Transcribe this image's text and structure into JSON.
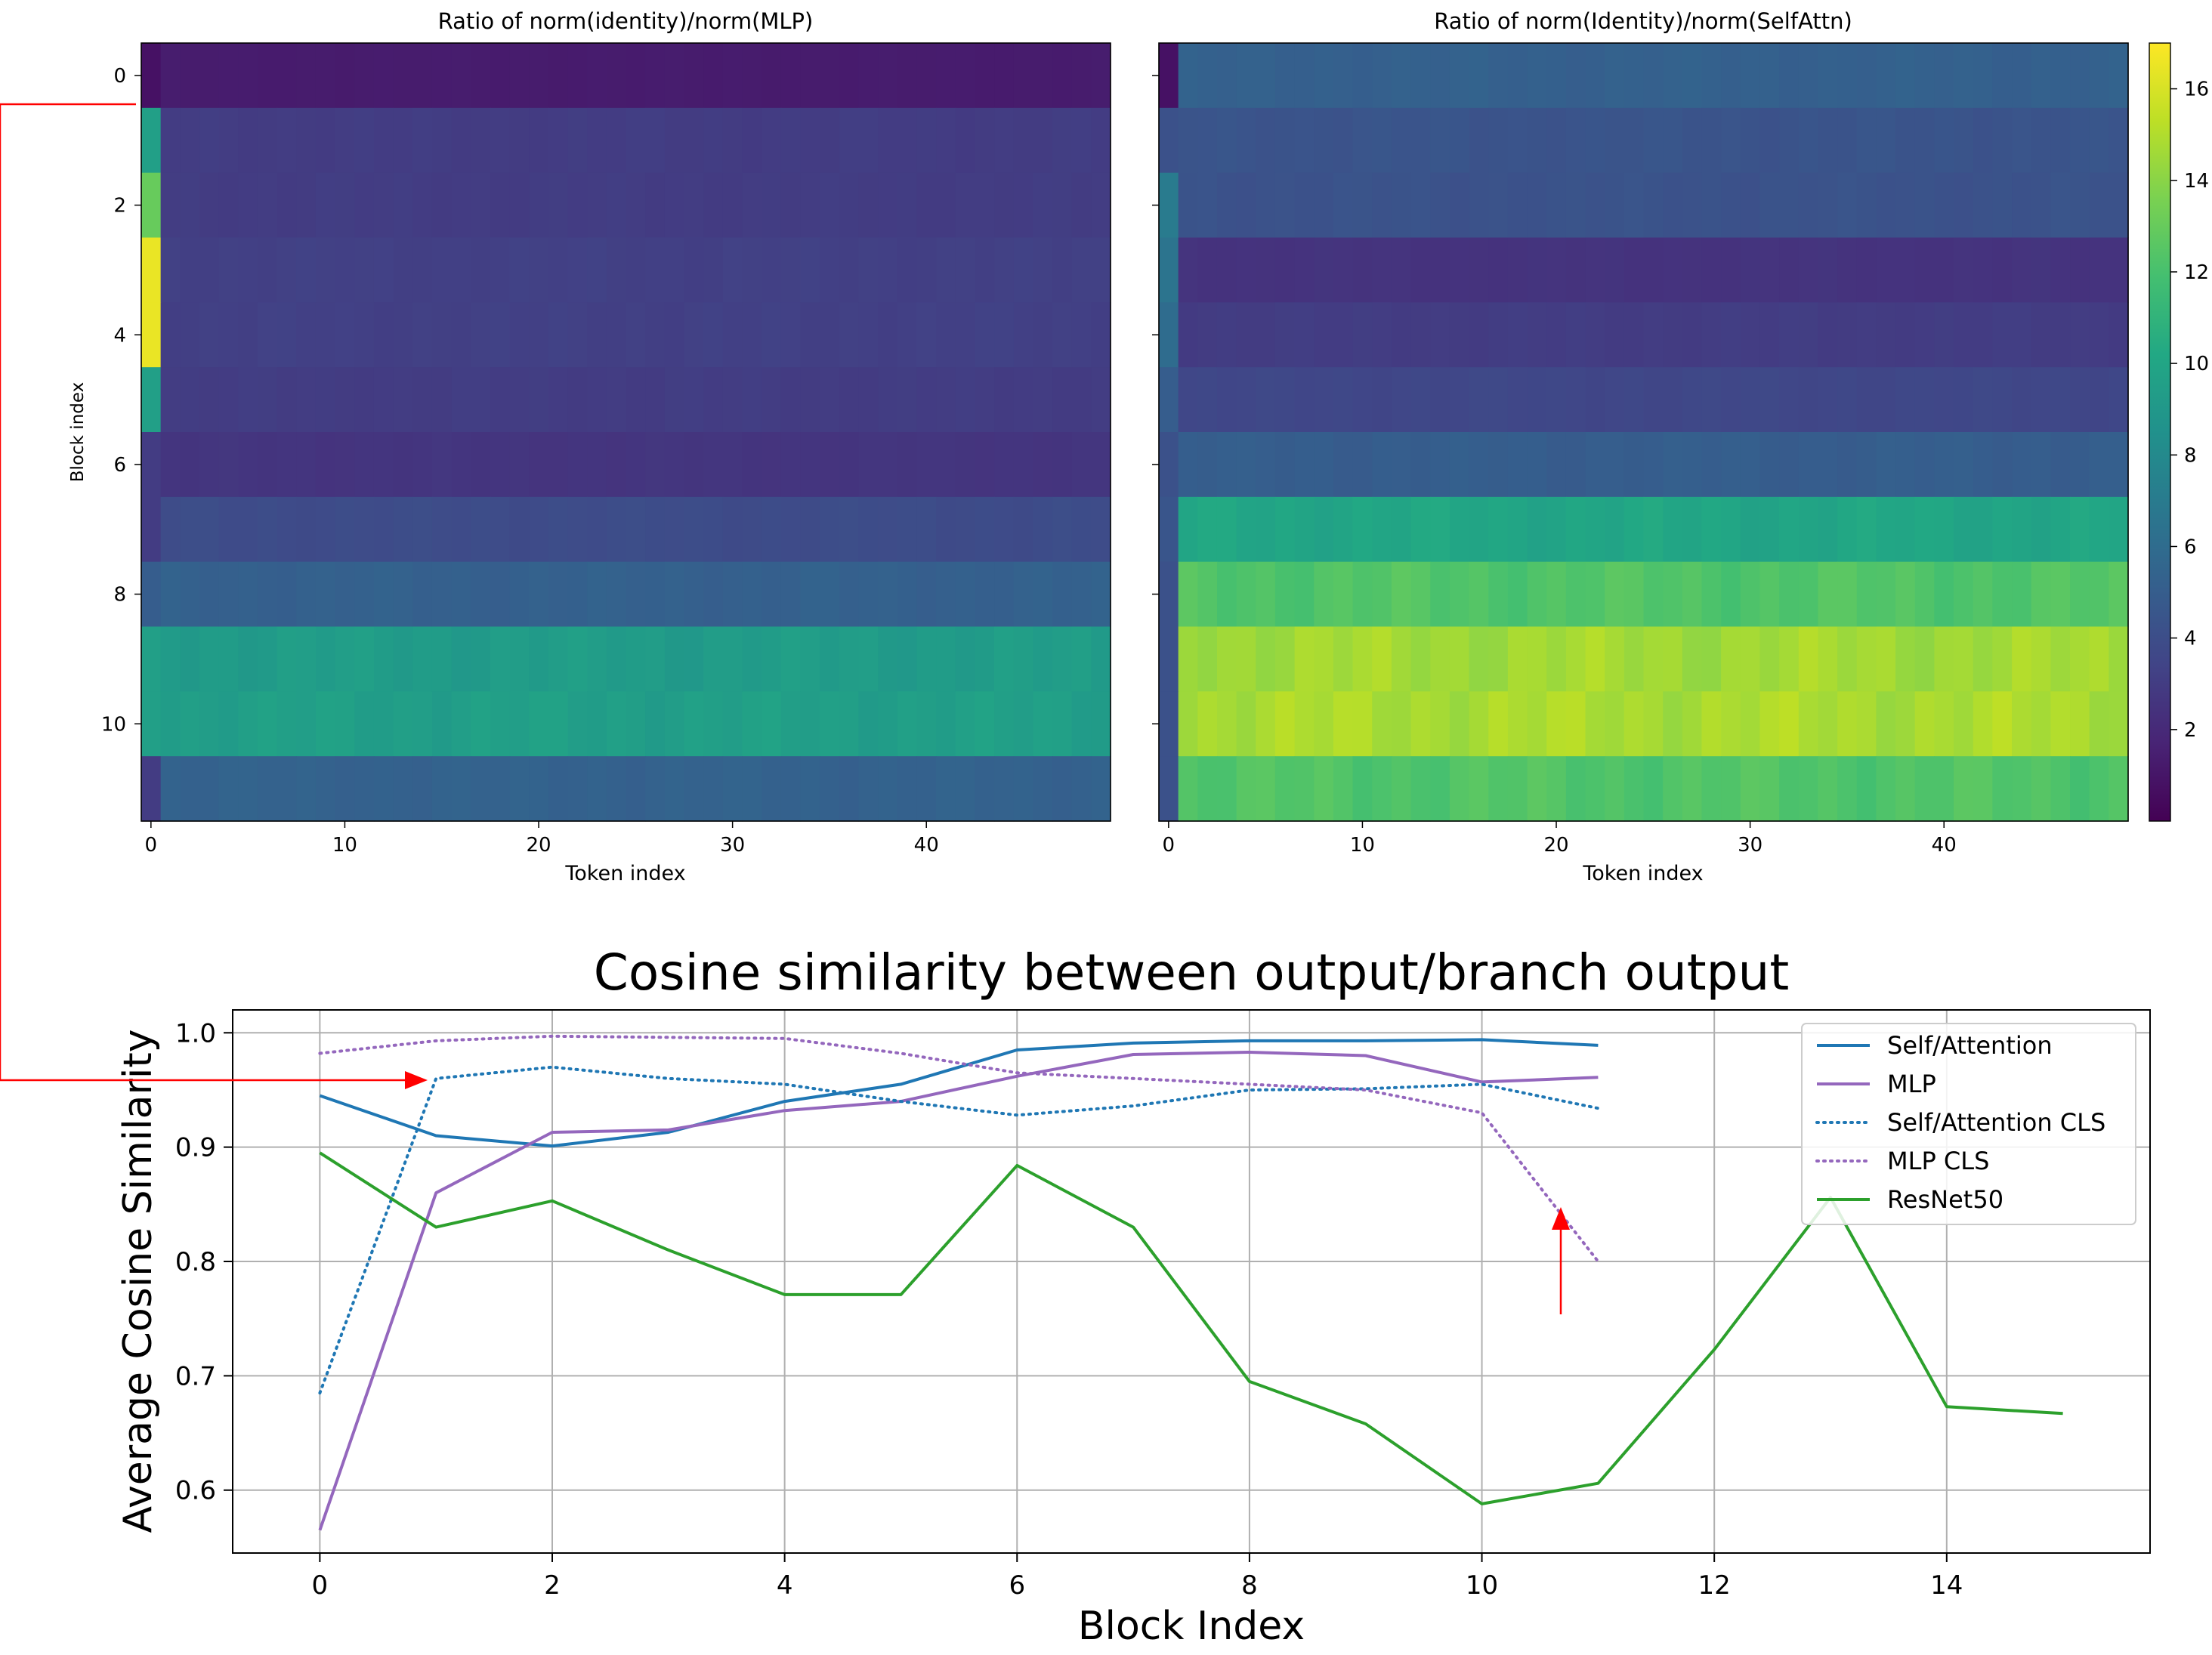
{
  "chart_data": [
    {
      "type": "heatmap",
      "title": "Ratio of norm(identity)/norm(MLP)",
      "xlabel": "Token index",
      "ylabel": "Block index",
      "x_ticks": [
        0,
        10,
        20,
        30,
        40
      ],
      "y_ticks": [
        0,
        2,
        4,
        6,
        8,
        10
      ],
      "n_tokens": 50,
      "n_blocks": 12,
      "cls_column_values": [
        0.8,
        9.5,
        13.0,
        16.5,
        16.5,
        9.5,
        3.0,
        3.0,
        5.0,
        9.5,
        9.5,
        3.0
      ],
      "row_values": [
        1.3,
        3.0,
        3.0,
        3.2,
        3.2,
        3.0,
        2.6,
        3.9,
        5.2,
        9.3,
        9.5,
        5.3
      ]
    },
    {
      "type": "heatmap",
      "title": "Ratio of norm(Identity)/norm(SelfAttn)",
      "xlabel": "Token index",
      "ylabel": "",
      "x_ticks": [
        0,
        10,
        20,
        30,
        40
      ],
      "y_ticks": [
        0,
        2,
        4,
        6,
        8,
        10
      ],
      "n_tokens": 50,
      "n_blocks": 12,
      "cls_column_values": [
        0.8,
        4.2,
        7.0,
        6.5,
        6.0,
        5.0,
        4.2,
        4.5,
        4.2,
        4.2,
        4.2,
        4.2
      ],
      "row_values": [
        5.2,
        4.4,
        4.3,
        2.5,
        3.0,
        3.6,
        5.0,
        10.0,
        12.3,
        14.6,
        14.8,
        12.3
      ]
    },
    {
      "type": "colorbar",
      "range": [
        0,
        17
      ],
      "ticks": [
        "2",
        "4",
        "6",
        "8",
        "10",
        "12",
        "14",
        "16"
      ]
    },
    {
      "type": "line",
      "title": "Cosine similarity between output/branch output",
      "xlabel": "Block Index",
      "ylabel": "Average Cosine Similarity",
      "xlim": [
        -0.75,
        15.75
      ],
      "ylim": [
        0.545,
        1.02
      ],
      "x_ticks": [
        "0",
        "2",
        "4",
        "6",
        "8",
        "10",
        "12",
        "14"
      ],
      "y_ticks": [
        "0.6",
        "0.7",
        "0.8",
        "0.9",
        "1.0"
      ],
      "grid": true,
      "legend_position": "top-right",
      "series": [
        {
          "name": "Self/Attention",
          "color": "#1f77b4",
          "style": "solid",
          "x": [
            0,
            1,
            2,
            3,
            4,
            5,
            6,
            7,
            8,
            9,
            10,
            11
          ],
          "values": [
            0.945,
            0.91,
            0.901,
            0.913,
            0.94,
            0.955,
            0.985,
            0.991,
            0.993,
            0.993,
            0.994,
            0.989
          ]
        },
        {
          "name": "MLP",
          "color": "#9467bd",
          "style": "solid",
          "x": [
            0,
            1,
            2,
            3,
            4,
            5,
            6,
            7,
            8,
            9,
            10,
            11
          ],
          "values": [
            0.565,
            0.86,
            0.913,
            0.915,
            0.932,
            0.94,
            0.962,
            0.981,
            0.983,
            0.98,
            0.957,
            0.961
          ]
        },
        {
          "name": "Self/Attention CLS",
          "color": "#1f77b4",
          "style": "dotted",
          "x": [
            0,
            1,
            2,
            3,
            4,
            5,
            6,
            7,
            8,
            9,
            10,
            11
          ],
          "values": [
            0.685,
            0.96,
            0.97,
            0.96,
            0.955,
            0.94,
            0.928,
            0.936,
            0.95,
            0.951,
            0.955,
            0.934
          ]
        },
        {
          "name": "MLP CLS",
          "color": "#9467bd",
          "style": "dotted",
          "x": [
            0,
            1,
            2,
            3,
            4,
            5,
            6,
            7,
            8,
            9,
            10,
            11
          ],
          "values": [
            0.982,
            0.993,
            0.997,
            0.996,
            0.995,
            0.982,
            0.965,
            0.96,
            0.955,
            0.95,
            0.93,
            0.8
          ]
        },
        {
          "name": "ResNet50",
          "color": "#2ca02c",
          "style": "solid",
          "x": [
            0,
            1,
            2,
            3,
            4,
            5,
            6,
            7,
            8,
            9,
            10,
            11,
            12,
            13,
            14,
            15
          ],
          "values": [
            0.895,
            0.83,
            0.853,
            0.81,
            0.771,
            0.771,
            0.884,
            0.83,
            0.695,
            0.658,
            0.588,
            0.606,
            0.723,
            0.856,
            0.673,
            0.667
          ]
        }
      ]
    }
  ],
  "annotations": {
    "connector_color": "#ff0000",
    "arrow_color": "#ff0000"
  }
}
